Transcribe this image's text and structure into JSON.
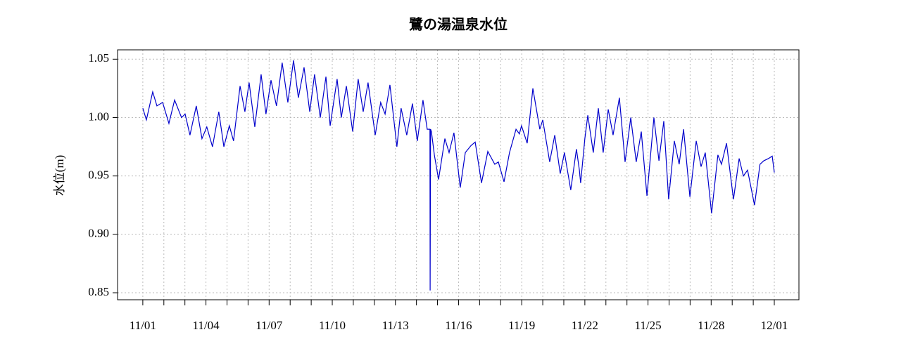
{
  "chart_data": {
    "type": "line",
    "title": "鷺の湯温泉水位",
    "y_label": "水位(m)",
    "x": [
      0,
      0.17,
      0.47,
      0.67,
      0.94,
      1.24,
      1.51,
      1.84,
      2.01,
      2.24,
      2.54,
      2.81,
      3.04,
      3.31,
      3.61,
      3.85,
      4.11,
      4.31,
      4.62,
      4.85,
      5.05,
      5.32,
      5.62,
      5.85,
      6.09,
      6.35,
      6.62,
      6.89,
      7.16,
      7.39,
      7.66,
      7.93,
      8.16,
      8.43,
      8.7,
      8.9,
      9.23,
      9.43,
      9.67,
      9.97,
      10.23,
      10.47,
      10.7,
      11.04,
      11.3,
      11.51,
      11.74,
      12.07,
      12.27,
      12.54,
      12.81,
      13.04,
      13.31,
      13.51,
      13.64,
      13.65,
      13.67,
      13.71,
      13.85,
      14.05,
      14.35,
      14.55,
      14.78,
      15.08,
      15.32,
      15.59,
      15.79,
      16.09,
      16.39,
      16.72,
      16.89,
      17.16,
      17.42,
      17.73,
      17.89,
      17.99,
      18.26,
      18.53,
      18.86,
      19.0,
      19.33,
      19.57,
      19.83,
      20.03,
      20.33,
      20.6,
      20.74,
      20.8,
      21.0,
      21.14,
      21.4,
      21.64,
      21.87,
      22.11,
      22.34,
      22.64,
      22.91,
      23.18,
      23.44,
      23.68,
      23.95,
      24.28,
      24.52,
      24.75,
      24.98,
      25.25,
      25.48,
      25.69,
      25.99,
      26.29,
      26.52,
      26.72,
      27.02,
      27.32,
      27.49,
      27.73,
      28.06,
      28.33,
      28.53,
      28.73,
      29.06,
      29.32,
      29.5,
      29.73,
      29.9,
      30.0
    ],
    "series": [
      {
        "name": "水位",
        "color": "#0000cc",
        "values": [
          1.008,
          0.998,
          1.022,
          1.01,
          1.013,
          0.995,
          1.015,
          1.0,
          1.003,
          0.985,
          1.01,
          0.982,
          0.992,
          0.975,
          1.005,
          0.975,
          0.993,
          0.98,
          1.027,
          1.005,
          1.03,
          0.992,
          1.037,
          1.003,
          1.032,
          1.01,
          1.047,
          1.013,
          1.049,
          1.017,
          1.043,
          1.005,
          1.037,
          1.0,
          1.035,
          0.993,
          1.033,
          1.0,
          1.027,
          0.988,
          1.033,
          1.005,
          1.03,
          0.985,
          1.013,
          1.003,
          1.028,
          0.975,
          1.008,
          0.985,
          1.012,
          0.98,
          1.015,
          0.99,
          0.99,
          0.852,
          0.99,
          0.988,
          0.968,
          0.947,
          0.982,
          0.97,
          0.987,
          0.94,
          0.97,
          0.976,
          0.979,
          0.944,
          0.971,
          0.96,
          0.962,
          0.945,
          0.97,
          0.99,
          0.986,
          0.993,
          0.978,
          1.025,
          0.99,
          0.998,
          0.962,
          0.985,
          0.952,
          0.97,
          0.938,
          0.973,
          0.955,
          0.944,
          0.982,
          1.002,
          0.97,
          1.008,
          0.97,
          1.007,
          0.985,
          1.017,
          0.962,
          1.0,
          0.962,
          0.988,
          0.933,
          1.0,
          0.963,
          0.997,
          0.93,
          0.98,
          0.96,
          0.99,
          0.932,
          0.98,
          0.958,
          0.97,
          0.918,
          0.968,
          0.96,
          0.978,
          0.93,
          0.965,
          0.95,
          0.955,
          0.925,
          0.96,
          0.963,
          0.965,
          0.967,
          0.953
        ]
      }
    ],
    "xlim": [
      -1.2,
      31.17
    ],
    "ylim": [
      0.844,
      1.058
    ],
    "xticks": [
      {
        "value": 0,
        "label": "11/01"
      },
      {
        "value": 3,
        "label": "11/04"
      },
      {
        "value": 6,
        "label": "11/07"
      },
      {
        "value": 9,
        "label": "11/10"
      },
      {
        "value": 12,
        "label": "11/13"
      },
      {
        "value": 15,
        "label": "11/16"
      },
      {
        "value": 18,
        "label": "11/19"
      },
      {
        "value": 21,
        "label": "11/22"
      },
      {
        "value": 24,
        "label": "11/25"
      },
      {
        "value": 27,
        "label": "11/28"
      },
      {
        "value": 30,
        "label": "12/01"
      }
    ],
    "xminor_ticks": [
      1,
      2,
      4,
      5,
      7,
      8,
      10,
      11,
      13,
      14,
      16,
      17,
      19,
      20,
      22,
      23,
      25,
      26,
      28,
      29
    ],
    "yticks": [
      0.85,
      {
        "value": 0.9,
        "label": "0.90"
      },
      0.95,
      {
        "value": 1,
        "label": "1.00"
      },
      1.05
    ],
    "grid": true
  }
}
